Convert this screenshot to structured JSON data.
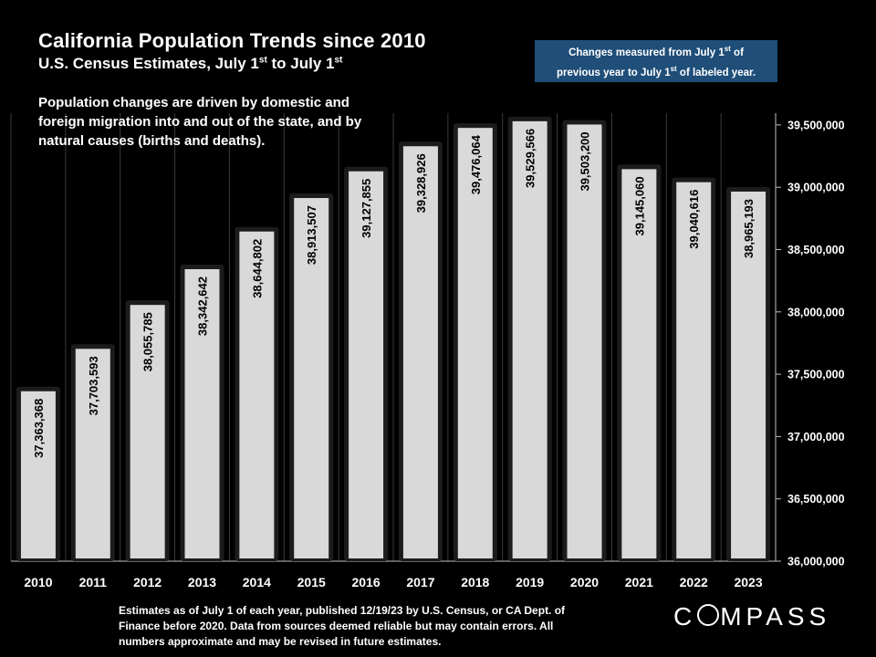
{
  "header": {
    "title": "California Population Trends since 2010",
    "subtitle_pre": "U.S. Census Estimates, July 1",
    "subtitle_sup1": "st",
    "subtitle_mid": " to July 1",
    "subtitle_sup2": "st"
  },
  "note": {
    "line1_pre": "Changes measured from July 1",
    "line1_sup": "st",
    "line1_post": " of",
    "line2_pre": "previous year to July 1",
    "line2_sup": "st",
    "line2_post": " of labeled year."
  },
  "description": "Population changes are driven by domestic and foreign migration into and out of the state, and by natural causes (births and deaths).",
  "footnote": "Estimates as of July 1 of each year, published 12/19/23 by U.S. Census, or CA Dept. of Finance before 2020. Data from sources deemed reliable but may contain errors. All numbers approximate and may be revised in future estimates.",
  "logo": {
    "pre": "C",
    "post": "MPASS"
  },
  "colors": {
    "background": "#000000",
    "bar": "#d9d9d9",
    "note_box": "#1f4e79"
  },
  "chart_data": {
    "type": "bar",
    "categories": [
      "2010",
      "2011",
      "2012",
      "2013",
      "2014",
      "2015",
      "2016",
      "2017",
      "2018",
      "2019",
      "2020",
      "2021",
      "2022",
      "2023"
    ],
    "values": [
      37363368,
      37703593,
      38055785,
      38342642,
      38644802,
      38913507,
      39127855,
      39328926,
      39476064,
      39529566,
      39503200,
      39145060,
      39040616,
      38965193
    ],
    "labels": [
      "37,363,368",
      "37,703,593",
      "38,055,785",
      "38,342,642",
      "38,644,802",
      "38,913,507",
      "39,127,855",
      "39,328,926",
      "39,476,064",
      "39,529,566",
      "39,503,200",
      "39,145,060",
      "39,040,616",
      "38,965,193"
    ],
    "yticks": [
      36000000,
      36500000,
      37000000,
      37500000,
      38000000,
      38500000,
      39000000,
      39500000
    ],
    "ytick_labels": [
      "36,000,000",
      "36,500,000",
      "37,000,000",
      "37,500,000",
      "38,000,000",
      "38,500,000",
      "39,000,000",
      "39,500,000"
    ],
    "ylim": [
      36000000,
      39600000
    ],
    "y_axis_side": "right",
    "grid": "vertical",
    "title": "California Population Trends since 2010"
  }
}
